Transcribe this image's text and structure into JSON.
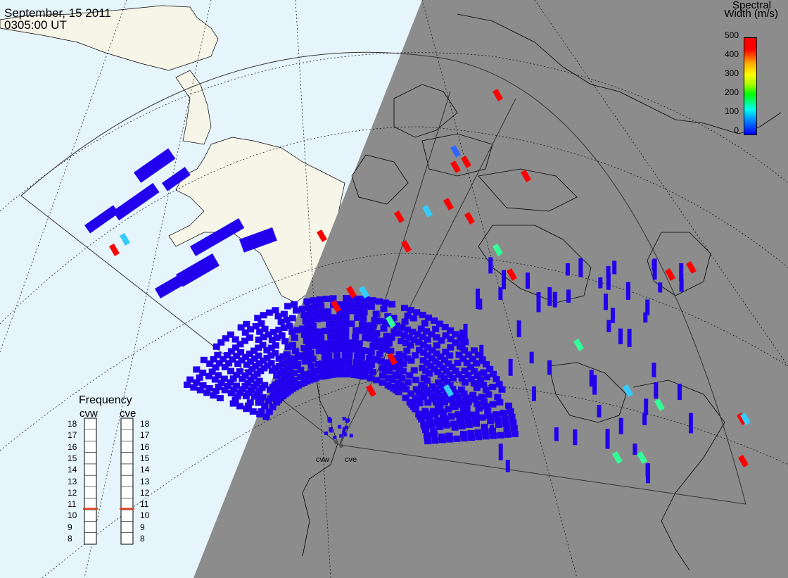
{
  "header": {
    "date": "September, 15 2011",
    "time": "0305:00 UT"
  },
  "colorbar": {
    "title_line1": "Spectral",
    "title_line2": "Width (m/s)",
    "ticks": [
      "500",
      "400",
      "300",
      "200",
      "100",
      "0"
    ],
    "range": [
      0,
      500
    ],
    "colors": [
      "#0000ff",
      "#00ccff",
      "#00ff00",
      "#ffff00",
      "#ff0000"
    ]
  },
  "frequency_panel": {
    "title": "Frequency",
    "radars": [
      {
        "name": "cvw",
        "selected_mhz": 10.6
      },
      {
        "name": "cve",
        "selected_mhz": 10.6
      }
    ],
    "ticks": [
      "18",
      "17",
      "16",
      "15",
      "14",
      "13",
      "12",
      "11",
      "10",
      "9",
      "8"
    ],
    "indicator_color": "#e0401a"
  },
  "radars": [
    {
      "name": "cvw"
    },
    {
      "name": "cve"
    }
  ],
  "map": {
    "ocean_color": "#e6f4fb",
    "land_color": "#f5f5e8",
    "night_color": "#8c8c8c",
    "scatter_primary_color": "#2200ee"
  }
}
